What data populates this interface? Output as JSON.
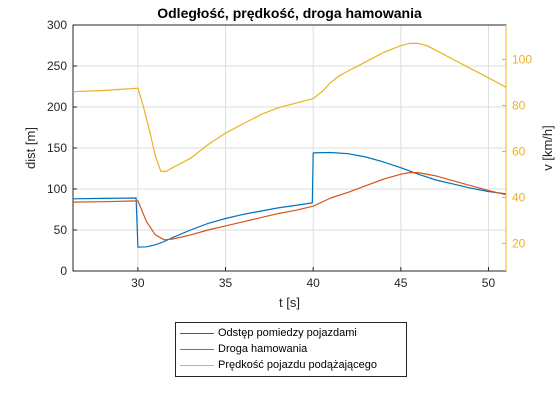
{
  "chart_data": {
    "type": "line",
    "title": "Odległość, prędkość, droga hamowania",
    "xlabel": "t [s]",
    "ylabel_left": "dist [m]",
    "ylabel_right": "v [km/h]",
    "xlim": [
      26.3,
      51
    ],
    "ylim_left": [
      0,
      300
    ],
    "ylim_right": [
      8,
      115
    ],
    "xticks": [
      "30",
      "35",
      "40",
      "45",
      "50"
    ],
    "yticks_left": [
      "0",
      "50",
      "100",
      "150",
      "200",
      "250",
      "300"
    ],
    "yticks_right": [
      "20",
      "40",
      "60",
      "80",
      "100"
    ],
    "legend_position": "bottom-outside",
    "grid": true,
    "colors": {
      "left_axis": "#262626",
      "right_axis": "#EDB120"
    },
    "series": [
      {
        "name": "Odstęp pomiedzy pojazdami",
        "axis": "left",
        "color": "#0072BD",
        "x": [
          26.3,
          28,
          29.9,
          30.0,
          30.5,
          31,
          31.5,
          32,
          33,
          34,
          35,
          36,
          37,
          38,
          39,
          39.95,
          40.0,
          41,
          42,
          43,
          44,
          45,
          46,
          47,
          48,
          49,
          50,
          51
        ],
        "y": [
          88,
          88.5,
          89,
          29,
          29.5,
          32,
          36,
          41,
          50,
          58,
          64,
          69,
          73,
          77,
          80,
          83,
          144,
          144.5,
          143,
          139,
          133,
          126,
          118,
          111,
          106,
          101,
          97,
          94
        ]
      },
      {
        "name": "Droga hamowania",
        "axis": "left",
        "color": "#D95319",
        "x": [
          26.3,
          28,
          30,
          30.5,
          31,
          31.5,
          32,
          33,
          34,
          35,
          36,
          37,
          38,
          39,
          40,
          41,
          42,
          43,
          44,
          45,
          45.5,
          46,
          47,
          48,
          49,
          50,
          51
        ],
        "y": [
          84,
          84.5,
          85.5,
          60,
          44,
          38,
          39,
          44,
          50,
          55,
          60,
          65,
          70,
          74,
          79,
          89,
          96,
          104,
          112,
          118,
          120,
          120,
          116,
          110,
          104,
          98,
          93
        ]
      },
      {
        "name": "Prędkość pojazdu podążającego",
        "axis": "right",
        "color": "#EDB120",
        "x": [
          26.3,
          28,
          30,
          30.3,
          30.7,
          31,
          31.3,
          31.6,
          32,
          33,
          34,
          35,
          36,
          37,
          38,
          39,
          40,
          40.5,
          41,
          41.5,
          42,
          43,
          44,
          45,
          45.5,
          46,
          46.5,
          47,
          48,
          49,
          50,
          51
        ],
        "y": [
          86,
          86.5,
          87.5,
          80,
          68,
          58,
          51.5,
          51.3,
          53,
          57,
          63,
          68,
          72,
          76,
          79,
          81,
          83,
          86,
          90,
          93,
          95,
          99,
          103,
          106,
          107,
          107,
          106,
          104,
          100,
          96,
          92,
          88
        ]
      }
    ]
  }
}
